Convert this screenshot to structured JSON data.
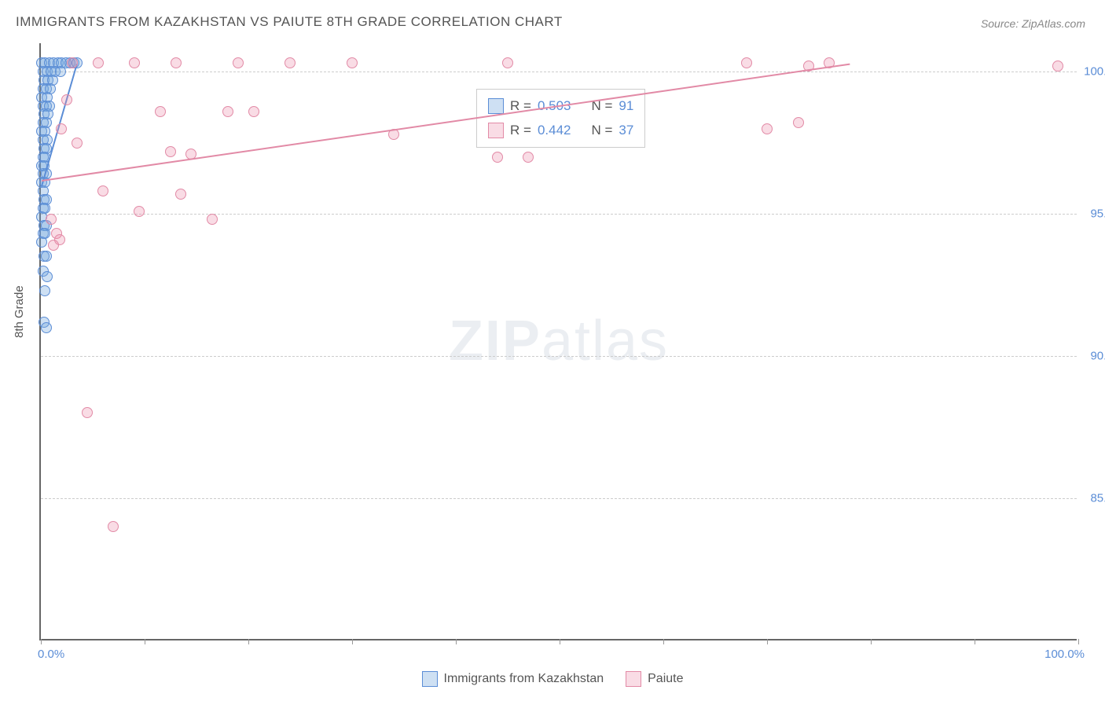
{
  "title": "IMMIGRANTS FROM KAZAKHSTAN VS PAIUTE 8TH GRADE CORRELATION CHART",
  "source_label": "Source:",
  "source_name": "ZipAtlas.com",
  "ylabel": "8th Grade",
  "watermark_bold": "ZIP",
  "watermark_light": "atlas",
  "chart": {
    "type": "scatter",
    "xlim": [
      0,
      100
    ],
    "ylim": [
      80,
      101
    ],
    "x_ticks_pct": [
      0,
      10,
      20,
      30,
      40,
      50,
      60,
      70,
      80,
      90,
      100
    ],
    "x_tick_label_left": "0.0%",
    "x_tick_label_right": "100.0%",
    "y_gridlines": [
      85,
      90,
      95,
      100
    ],
    "y_tick_labels": [
      "85.0%",
      "90.0%",
      "95.0%",
      "100.0%"
    ],
    "background_color": "#ffffff",
    "grid_color": "#cccccc",
    "axis_color": "#666666",
    "tick_color": "#5b8dd6",
    "marker_radius": 7,
    "marker_stroke": 1.5,
    "series": [
      {
        "name": "Immigrants from Kazakhstan",
        "fill": "rgba(115,165,220,0.35)",
        "stroke": "#5b8dd6",
        "R": "0.503",
        "N": "91",
        "trend": {
          "x1": 0.1,
          "y1": 96.0,
          "x2": 3.5,
          "y2": 100.3
        },
        "points": [
          [
            0.1,
            100.3
          ],
          [
            0.4,
            100.3
          ],
          [
            0.8,
            100.3
          ],
          [
            1.2,
            100.3
          ],
          [
            1.7,
            100.3
          ],
          [
            2.0,
            100.3
          ],
          [
            2.4,
            100.3
          ],
          [
            2.8,
            100.3
          ],
          [
            3.2,
            100.3
          ],
          [
            3.5,
            100.3
          ],
          [
            0.2,
            100.0
          ],
          [
            0.6,
            100.0
          ],
          [
            1.0,
            100.0
          ],
          [
            1.4,
            100.0
          ],
          [
            1.9,
            100.0
          ],
          [
            0.3,
            99.7
          ],
          [
            0.7,
            99.7
          ],
          [
            1.1,
            99.7
          ],
          [
            0.2,
            99.4
          ],
          [
            0.5,
            99.4
          ],
          [
            0.9,
            99.4
          ],
          [
            0.1,
            99.1
          ],
          [
            0.6,
            99.1
          ],
          [
            0.2,
            98.8
          ],
          [
            0.5,
            98.8
          ],
          [
            0.8,
            98.8
          ],
          [
            0.3,
            98.5
          ],
          [
            0.7,
            98.5
          ],
          [
            0.2,
            98.2
          ],
          [
            0.5,
            98.2
          ],
          [
            0.1,
            97.9
          ],
          [
            0.4,
            97.9
          ],
          [
            0.2,
            97.6
          ],
          [
            0.6,
            97.6
          ],
          [
            0.3,
            97.3
          ],
          [
            0.5,
            97.3
          ],
          [
            0.2,
            97.0
          ],
          [
            0.4,
            97.0
          ],
          [
            0.1,
            96.7
          ],
          [
            0.3,
            96.7
          ],
          [
            0.2,
            96.4
          ],
          [
            0.5,
            96.4
          ],
          [
            0.1,
            96.1
          ],
          [
            0.4,
            96.1
          ],
          [
            0.2,
            95.8
          ],
          [
            0.3,
            95.5
          ],
          [
            0.5,
            95.5
          ],
          [
            0.2,
            95.2
          ],
          [
            0.4,
            95.2
          ],
          [
            0.1,
            94.9
          ],
          [
            0.3,
            94.6
          ],
          [
            0.5,
            94.6
          ],
          [
            0.2,
            94.3
          ],
          [
            0.4,
            94.3
          ],
          [
            0.1,
            94.0
          ],
          [
            0.3,
            93.5
          ],
          [
            0.5,
            93.5
          ],
          [
            0.2,
            93.0
          ],
          [
            0.6,
            92.8
          ],
          [
            0.4,
            92.3
          ],
          [
            0.3,
            91.2
          ],
          [
            0.5,
            91.0
          ]
        ]
      },
      {
        "name": "Paiute",
        "fill": "rgba(235,140,170,0.30)",
        "stroke": "#e28aa6",
        "R": "0.442",
        "N": "37",
        "trend": {
          "x1": 0.1,
          "y1": 96.2,
          "x2": 78.0,
          "y2": 100.3
        },
        "points": [
          [
            3.0,
            100.3
          ],
          [
            5.5,
            100.3
          ],
          [
            9.0,
            100.3
          ],
          [
            13.0,
            100.3
          ],
          [
            19.0,
            100.3
          ],
          [
            24.0,
            100.3
          ],
          [
            30.0,
            100.3
          ],
          [
            45.0,
            100.3
          ],
          [
            68.0,
            100.3
          ],
          [
            74.0,
            100.2
          ],
          [
            76.0,
            100.3
          ],
          [
            98.0,
            100.2
          ],
          [
            2.5,
            99.0
          ],
          [
            11.5,
            98.6
          ],
          [
            18.0,
            98.6
          ],
          [
            20.5,
            98.6
          ],
          [
            2.0,
            98.0
          ],
          [
            70.0,
            98.0
          ],
          [
            73.0,
            98.2
          ],
          [
            3.5,
            97.5
          ],
          [
            34.0,
            97.8
          ],
          [
            44.0,
            97.0
          ],
          [
            47.0,
            97.0
          ],
          [
            12.5,
            97.2
          ],
          [
            14.5,
            97.1
          ],
          [
            6.0,
            95.8
          ],
          [
            13.5,
            95.7
          ],
          [
            9.5,
            95.1
          ],
          [
            16.5,
            94.8
          ],
          [
            1.0,
            94.8
          ],
          [
            1.5,
            94.3
          ],
          [
            1.8,
            94.1
          ],
          [
            1.2,
            93.9
          ],
          [
            4.5,
            88.0
          ],
          [
            7.0,
            84.0
          ]
        ]
      }
    ]
  },
  "legend_box": {
    "r_label": "R =",
    "n_label": "N ="
  },
  "bottom_legend": {
    "items": [
      "Immigrants from Kazakhstan",
      "Paiute"
    ]
  }
}
